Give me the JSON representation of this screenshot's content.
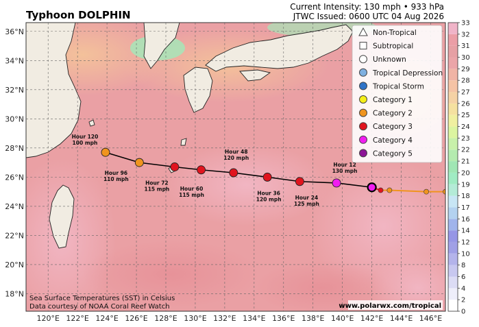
{
  "header": {
    "title": "Typhoon DOLPHIN",
    "intensity": "Current Intensity: 130 mph • 933 hPa",
    "issued": "JTWC Issued: 0600 UTC 04 Aug 2026"
  },
  "footer": {
    "credit_line1": "Sea Surface Temperatures (SST) in Celsius",
    "credit_line2": "Data courtesy of NOAA Coral Reef Watch",
    "website": "www.polarwx.com/tropical"
  },
  "map": {
    "lon_range": [
      118.5,
      147
    ],
    "lat_range": [
      16.8,
      36.6
    ],
    "lon_ticks": [
      "120°E",
      "122°E",
      "124°E",
      "126°E",
      "128°E",
      "130°E",
      "132°E",
      "134°E",
      "136°E",
      "138°E",
      "140°E",
      "142°E",
      "144°E",
      "146°E"
    ],
    "lat_ticks": [
      "18°N",
      "20°N",
      "22°N",
      "24°N",
      "26°N",
      "28°N",
      "30°N",
      "32°N",
      "34°N",
      "36°N"
    ],
    "ocean_color": "#eaa0a4",
    "land_color": "#f1ece2"
  },
  "legend": {
    "items": [
      {
        "label": "Non-Tropical",
        "symbol": "triangle",
        "color": "#ffffff"
      },
      {
        "label": "Subtropical",
        "symbol": "square",
        "color": "#ffffff"
      },
      {
        "label": "Unknown",
        "symbol": "circle",
        "color": "#ffffff"
      },
      {
        "label": "Tropical Depression",
        "symbol": "circle",
        "color": "#7fb0e0"
      },
      {
        "label": "Tropical Storm",
        "symbol": "circle",
        "color": "#2f73c7"
      },
      {
        "label": "Category 1",
        "symbol": "circle",
        "color": "#f5ef1a"
      },
      {
        "label": "Category 2",
        "symbol": "circle",
        "color": "#f0941e"
      },
      {
        "label": "Category 3",
        "symbol": "circle",
        "color": "#e0141e"
      },
      {
        "label": "Category 4",
        "symbol": "circle",
        "color": "#f01ef0"
      },
      {
        "label": "Category 5",
        "symbol": "circle",
        "color": "#8c1496"
      }
    ]
  },
  "colorbar": {
    "ticks": [
      "0",
      "2",
      "4",
      "6",
      "8",
      "10",
      "12",
      "14",
      "16",
      "17",
      "18",
      "19",
      "20",
      "21",
      "22",
      "23",
      "24",
      "25",
      "26",
      "27",
      "28",
      "29",
      "30",
      "31",
      "32",
      "33"
    ],
    "colors": [
      "#ffffff",
      "#eeeefa",
      "#dcdcf5",
      "#c8c8f0",
      "#b4b4eb",
      "#a0a0e6",
      "#9696e6",
      "#a0b4eb",
      "#b4d2f0",
      "#c8e6f5",
      "#b4ebd7",
      "#a0ebc3",
      "#a0e6b4",
      "#b4ebaf",
      "#c8f0aa",
      "#dcf5a0",
      "#f0f0a0",
      "#f5e1a0",
      "#f5d2a5",
      "#f5c3a5",
      "#f0b4a5",
      "#eba5a8",
      "#e6a0a4",
      "#eb9ea6",
      "#f0b4c8"
    ]
  },
  "track": {
    "past": [
      {
        "lon": 147.0,
        "lat": 25.0,
        "category": "Category 2"
      },
      {
        "lon": 145.7,
        "lat": 25.0,
        "category": "Category 2"
      },
      {
        "lon": 143.2,
        "lat": 25.1,
        "category": "Category 2"
      },
      {
        "lon": 142.6,
        "lat": 25.1,
        "category": "Category 3"
      }
    ],
    "current": {
      "lon": 142.0,
      "lat": 25.3,
      "category": "Category 4"
    },
    "forecast": [
      {
        "label": "Hour 12",
        "wind": "130 mph",
        "lon": 139.6,
        "lat": 25.6,
        "category": "Category 4"
      },
      {
        "label": "Hour 24",
        "wind": "125 mph",
        "lon": 137.1,
        "lat": 25.7,
        "category": "Category 3"
      },
      {
        "label": "Hour 36",
        "wind": "120 mph",
        "lon": 134.9,
        "lat": 26.0,
        "category": "Category 3"
      },
      {
        "label": "Hour 48",
        "wind": "120 mph",
        "lon": 132.6,
        "lat": 26.3,
        "category": "Category 3"
      },
      {
        "label": "Hour 60",
        "wind": "115 mph",
        "lon": 130.4,
        "lat": 26.5,
        "category": "Category 3"
      },
      {
        "label": "Hour 72",
        "wind": "115 mph",
        "lon": 128.6,
        "lat": 26.7,
        "category": "Category 3"
      },
      {
        "label": "Hour 96",
        "wind": "110 mph",
        "lon": 126.2,
        "lat": 27.0,
        "category": "Category 2"
      },
      {
        "label": "Hour 120",
        "wind": "100 mph",
        "lon": 123.9,
        "lat": 27.7,
        "category": "Category 2"
      }
    ]
  }
}
